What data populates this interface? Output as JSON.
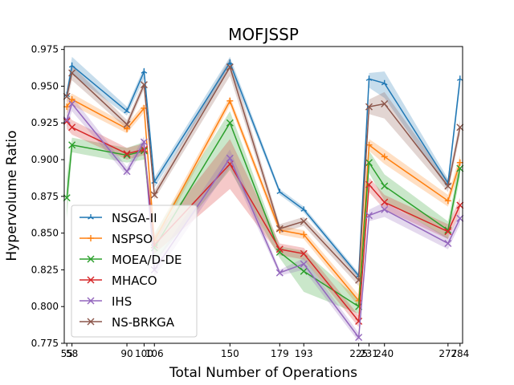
{
  "chart_data": {
    "type": "line",
    "title": "MOFJSSP",
    "xlabel": "Total Number of Operations",
    "ylabel": "Hypervolume Ratio",
    "x": [
      55,
      58,
      90,
      100,
      106,
      150,
      179,
      193,
      225,
      231,
      240,
      277,
      284
    ],
    "xticks": [
      "55",
      "58",
      "90",
      "100",
      "106",
      "150",
      "179",
      "193",
      "225",
      "231",
      "240",
      "277",
      "284"
    ],
    "xlim": [
      53.5,
      285.5
    ],
    "ylim": [
      0.775,
      0.977
    ],
    "yticks": [
      "0.775",
      "0.800",
      "0.825",
      "0.850",
      "0.875",
      "0.900",
      "0.925",
      "0.950",
      "0.975"
    ],
    "legend_position": "lower-left",
    "grid": false,
    "series": [
      {
        "name": "NSGA-II",
        "color": "#1f77b4",
        "marker": "tri_up",
        "values": [
          0.944,
          0.964,
          0.933,
          0.96,
          0.885,
          0.966,
          0.878,
          0.866,
          0.821,
          0.955,
          0.952,
          0.884,
          0.955
        ],
        "lower": [
          0.94,
          0.958,
          0.93,
          0.955,
          0.881,
          0.962,
          0.876,
          0.864,
          0.819,
          0.949,
          0.942,
          0.88,
          0.949
        ],
        "upper": [
          0.948,
          0.97,
          0.936,
          0.963,
          0.888,
          0.97,
          0.88,
          0.868,
          0.823,
          0.959,
          0.96,
          0.887,
          0.959
        ]
      },
      {
        "name": "NSPSO",
        "color": "#ff7f0e",
        "marker": "plus",
        "values": [
          0.936,
          0.941,
          0.921,
          0.935,
          0.845,
          0.94,
          0.852,
          0.849,
          0.804,
          0.91,
          0.902,
          0.872,
          0.898
        ],
        "lower": [
          0.931,
          0.937,
          0.918,
          0.932,
          0.841,
          0.937,
          0.849,
          0.846,
          0.8,
          0.906,
          0.897,
          0.868,
          0.893
        ],
        "upper": [
          0.941,
          0.945,
          0.924,
          0.938,
          0.849,
          0.943,
          0.855,
          0.852,
          0.808,
          0.914,
          0.907,
          0.876,
          0.903
        ]
      },
      {
        "name": "MOEA/D-DE",
        "color": "#2ca02c",
        "marker": "x",
        "values": [
          0.874,
          0.91,
          0.903,
          0.906,
          0.84,
          0.925,
          0.837,
          0.824,
          0.8,
          0.898,
          0.882,
          0.852,
          0.894
        ],
        "lower": [
          0.86,
          0.905,
          0.898,
          0.9,
          0.83,
          0.893,
          0.833,
          0.81,
          0.795,
          0.891,
          0.872,
          0.846,
          0.888
        ],
        "upper": [
          0.888,
          0.915,
          0.908,
          0.912,
          0.85,
          0.933,
          0.841,
          0.838,
          0.805,
          0.906,
          0.89,
          0.858,
          0.9
        ]
      },
      {
        "name": "MHACO",
        "color": "#d62728",
        "marker": "x",
        "values": [
          0.926,
          0.922,
          0.904,
          0.907,
          0.842,
          0.897,
          0.839,
          0.836,
          0.79,
          0.883,
          0.871,
          0.851,
          0.869
        ],
        "lower": [
          0.921,
          0.917,
          0.9,
          0.903,
          0.836,
          0.88,
          0.835,
          0.832,
          0.786,
          0.878,
          0.866,
          0.846,
          0.864
        ],
        "upper": [
          0.931,
          0.927,
          0.908,
          0.911,
          0.848,
          0.914,
          0.843,
          0.84,
          0.794,
          0.888,
          0.876,
          0.856,
          0.874
        ]
      },
      {
        "name": "IHS",
        "color": "#9467bd",
        "marker": "x",
        "values": [
          0.927,
          0.938,
          0.892,
          0.912,
          0.825,
          0.901,
          0.823,
          0.829,
          0.779,
          0.862,
          0.866,
          0.843,
          0.86
        ],
        "lower": [
          0.922,
          0.933,
          0.889,
          0.908,
          0.82,
          0.895,
          0.821,
          0.825,
          0.776,
          0.858,
          0.861,
          0.839,
          0.856
        ],
        "upper": [
          0.932,
          0.943,
          0.895,
          0.916,
          0.83,
          0.907,
          0.825,
          0.833,
          0.782,
          0.866,
          0.871,
          0.847,
          0.864
        ]
      },
      {
        "name": "NS-BRKGA",
        "color": "#8c564b",
        "marker": "x",
        "values": [
          0.943,
          0.959,
          0.924,
          0.951,
          0.876,
          0.963,
          0.853,
          0.858,
          0.818,
          0.936,
          0.938,
          0.882,
          0.922
        ],
        "lower": [
          0.938,
          0.954,
          0.921,
          0.948,
          0.873,
          0.957,
          0.85,
          0.855,
          0.814,
          0.931,
          0.928,
          0.878,
          0.917
        ],
        "upper": [
          0.948,
          0.964,
          0.927,
          0.954,
          0.879,
          0.969,
          0.856,
          0.861,
          0.822,
          0.941,
          0.946,
          0.886,
          0.927
        ]
      }
    ]
  }
}
